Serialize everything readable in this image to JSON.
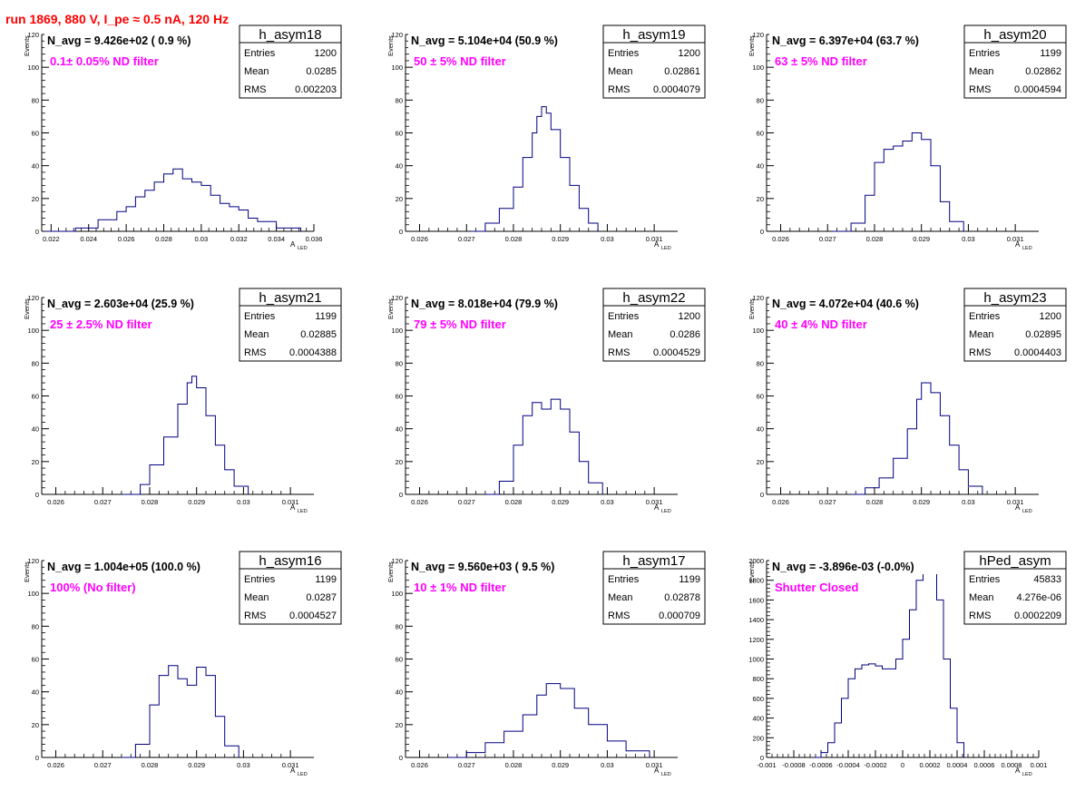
{
  "header": {
    "run_label": "run 1869,   880 V, I_pe ≈ 0.5 nA, 120 Hz"
  },
  "colors": {
    "header": "#ff0000",
    "filter_label": "#ff00ff",
    "histogram": "#000080",
    "axis": "#000000",
    "background": "#ffffff"
  },
  "axis_titles": {
    "y": "Events",
    "x_main": "A",
    "x_sub": "LED"
  },
  "stats_labels": {
    "entries": "Entries",
    "mean": "Mean",
    "rms": "RMS"
  },
  "chart_data": [
    {
      "type": "bar",
      "name": "h_asym18",
      "navg_text": "N_avg = 9.426e+02 ( 0.9 %)",
      "filter_text": "0.1± 0.05% ND filter",
      "stats": {
        "entries": "1200",
        "mean": "0.0285",
        "rms": "0.002203"
      },
      "xlim": [
        0.0215,
        0.036
      ],
      "ylim": [
        0,
        120
      ],
      "xticks": [
        0.022,
        0.024,
        0.026,
        0.028,
        0.03,
        0.032,
        0.034,
        0.036
      ],
      "xtick_labels": [
        "0.022",
        "0.024",
        "0.026",
        "0.028",
        "0.03",
        "0.032",
        "0.034",
        "0.036"
      ],
      "yticks": [
        0,
        20,
        40,
        60,
        80,
        100,
        120
      ],
      "ytick_labels": [
        "0",
        "20",
        "40",
        "60",
        "80",
        "100",
        "120"
      ],
      "x": [
        0.0217,
        0.0233,
        0.0245,
        0.0255,
        0.026,
        0.0265,
        0.027,
        0.0275,
        0.028,
        0.0285,
        0.029,
        0.0295,
        0.03,
        0.0305,
        0.031,
        0.0315,
        0.032,
        0.0325,
        0.033,
        0.034,
        0.0353
      ],
      "y": [
        0,
        2,
        7,
        12,
        15,
        21,
        25,
        30,
        35,
        38,
        32,
        30,
        28,
        22,
        17,
        15,
        13,
        8,
        6,
        2,
        0
      ]
    },
    {
      "type": "bar",
      "name": "h_asym19",
      "navg_text": "N_avg = 5.104e+04 (50.9 %)",
      "filter_text": "50 ± 5% ND filter",
      "stats": {
        "entries": "1200",
        "mean": "0.02861",
        "rms": "0.0004079"
      },
      "xlim": [
        0.0257,
        0.0315
      ],
      "ylim": [
        0,
        120
      ],
      "xticks": [
        0.026,
        0.027,
        0.028,
        0.029,
        0.03,
        0.031
      ],
      "xtick_labels": [
        "0.026",
        "0.027",
        "0.028",
        "0.029",
        "0.03",
        "0.031"
      ],
      "yticks": [
        0,
        20,
        40,
        60,
        80,
        100,
        120
      ],
      "ytick_labels": [
        "0",
        "20",
        "40",
        "60",
        "80",
        "100",
        "120"
      ],
      "x": [
        0.0271,
        0.0274,
        0.0277,
        0.028,
        0.0282,
        0.0284,
        0.0285,
        0.0286,
        0.0287,
        0.0288,
        0.029,
        0.0292,
        0.0294,
        0.0296,
        0.0298
      ],
      "y": [
        0,
        5,
        14,
        27,
        45,
        60,
        70,
        76,
        72,
        62,
        45,
        28,
        14,
        5,
        0
      ]
    },
    {
      "type": "bar",
      "name": "h_asym20",
      "navg_text": "N_avg = 6.397e+04 (63.7 %)",
      "filter_text": "63 ± 5% ND filter",
      "stats": {
        "entries": "1199",
        "mean": "0.02862",
        "rms": "0.0004594"
      },
      "xlim": [
        0.0257,
        0.0315
      ],
      "ylim": [
        0,
        120
      ],
      "xticks": [
        0.026,
        0.027,
        0.028,
        0.029,
        0.03,
        0.031
      ],
      "xtick_labels": [
        "0.026",
        "0.027",
        "0.028",
        "0.029",
        "0.03",
        "0.031"
      ],
      "yticks": [
        0,
        20,
        40,
        60,
        80,
        100,
        120
      ],
      "ytick_labels": [
        "0",
        "20",
        "40",
        "60",
        "80",
        "100",
        "120"
      ],
      "x": [
        0.0271,
        0.0275,
        0.0278,
        0.028,
        0.0282,
        0.0284,
        0.0286,
        0.0288,
        0.029,
        0.0292,
        0.0294,
        0.0296,
        0.0299
      ],
      "y": [
        0,
        5,
        22,
        42,
        50,
        52,
        55,
        60,
        56,
        40,
        18,
        6,
        0
      ]
    },
    {
      "type": "bar",
      "name": "h_asym21",
      "navg_text": "N_avg = 2.603e+04 (25.9 %)",
      "filter_text": "25 ± 2.5% ND filter",
      "stats": {
        "entries": "1199",
        "mean": "0.02885",
        "rms": "0.0004388"
      },
      "xlim": [
        0.0257,
        0.0315
      ],
      "ylim": [
        0,
        120
      ],
      "xticks": [
        0.026,
        0.027,
        0.028,
        0.029,
        0.03,
        0.031
      ],
      "xtick_labels": [
        "0.026",
        "0.027",
        "0.028",
        "0.029",
        "0.03",
        "0.031"
      ],
      "yticks": [
        0,
        20,
        40,
        60,
        80,
        100,
        120
      ],
      "ytick_labels": [
        "0",
        "20",
        "40",
        "60",
        "80",
        "100",
        "120"
      ],
      "x": [
        0.0274,
        0.0278,
        0.028,
        0.0283,
        0.0286,
        0.0288,
        0.0289,
        0.029,
        0.0292,
        0.0294,
        0.0296,
        0.0298,
        0.0301
      ],
      "y": [
        0,
        6,
        18,
        35,
        55,
        68,
        72,
        65,
        48,
        30,
        15,
        5,
        0
      ]
    },
    {
      "type": "bar",
      "name": "h_asym22",
      "navg_text": "N_avg = 8.018e+04 (79.9 %)",
      "filter_text": "79 ± 5% ND filter",
      "stats": {
        "entries": "1200",
        "mean": "0.0286",
        "rms": "0.0004529"
      },
      "xlim": [
        0.0257,
        0.0315
      ],
      "ylim": [
        0,
        120
      ],
      "xticks": [
        0.026,
        0.027,
        0.028,
        0.029,
        0.03,
        0.031
      ],
      "xtick_labels": [
        "0.026",
        "0.027",
        "0.028",
        "0.029",
        "0.03",
        "0.031"
      ],
      "yticks": [
        0,
        20,
        40,
        60,
        80,
        100,
        120
      ],
      "ytick_labels": [
        "0",
        "20",
        "40",
        "60",
        "80",
        "100",
        "120"
      ],
      "x": [
        0.0274,
        0.0277,
        0.028,
        0.0282,
        0.0284,
        0.0286,
        0.0288,
        0.029,
        0.0292,
        0.0294,
        0.0296,
        0.0299
      ],
      "y": [
        0,
        8,
        30,
        48,
        56,
        52,
        58,
        52,
        38,
        20,
        7,
        0
      ]
    },
    {
      "type": "bar",
      "name": "h_asym23",
      "navg_text": "N_avg = 4.072e+04 (40.6 %)",
      "filter_text": "40 ± 4% ND filter",
      "stats": {
        "entries": "1200",
        "mean": "0.02895",
        "rms": "0.0004403"
      },
      "xlim": [
        0.0257,
        0.0315
      ],
      "ylim": [
        0,
        120
      ],
      "xticks": [
        0.026,
        0.027,
        0.028,
        0.029,
        0.03,
        0.031
      ],
      "xtick_labels": [
        "0.026",
        "0.027",
        "0.028",
        "0.029",
        "0.03",
        "0.031"
      ],
      "yticks": [
        0,
        20,
        40,
        60,
        80,
        100,
        120
      ],
      "ytick_labels": [
        "0",
        "20",
        "40",
        "60",
        "80",
        "100",
        "120"
      ],
      "x": [
        0.0275,
        0.0278,
        0.0281,
        0.0284,
        0.0287,
        0.0289,
        0.029,
        0.0292,
        0.0294,
        0.0296,
        0.0298,
        0.03,
        0.0303
      ],
      "y": [
        0,
        4,
        10,
        22,
        40,
        58,
        68,
        62,
        48,
        30,
        15,
        5,
        0
      ]
    },
    {
      "type": "bar",
      "name": "h_asym16",
      "navg_text": "N_avg = 1.004e+05 (100.0 %)",
      "filter_text": "100% (No filter)",
      "stats": {
        "entries": "1199",
        "mean": "0.0287",
        "rms": "0.0004527"
      },
      "xlim": [
        0.0257,
        0.0315
      ],
      "ylim": [
        0,
        120
      ],
      "xticks": [
        0.026,
        0.027,
        0.028,
        0.029,
        0.03,
        0.031
      ],
      "xtick_labels": [
        "0.026",
        "0.027",
        "0.028",
        "0.029",
        "0.03",
        "0.031"
      ],
      "yticks": [
        0,
        20,
        40,
        60,
        80,
        100,
        120
      ],
      "ytick_labels": [
        "0",
        "20",
        "40",
        "60",
        "80",
        "100",
        "120"
      ],
      "x": [
        0.0274,
        0.0277,
        0.028,
        0.0282,
        0.0284,
        0.0286,
        0.0288,
        0.029,
        0.0292,
        0.0294,
        0.0296,
        0.0299
      ],
      "y": [
        0,
        8,
        32,
        50,
        56,
        48,
        44,
        55,
        50,
        25,
        7,
        0
      ]
    },
    {
      "type": "bar",
      "name": "h_asym17",
      "navg_text": "N_avg = 9.560e+03 ( 9.5 %)",
      "filter_text": "10 ± 1% ND filter",
      "stats": {
        "entries": "1199",
        "mean": "0.02878",
        "rms": "0.000709"
      },
      "xlim": [
        0.0257,
        0.0315
      ],
      "ylim": [
        0,
        120
      ],
      "xticks": [
        0.026,
        0.027,
        0.028,
        0.029,
        0.03,
        0.031
      ],
      "xtick_labels": [
        "0.026",
        "0.027",
        "0.028",
        "0.029",
        "0.03",
        "0.031"
      ],
      "yticks": [
        0,
        20,
        40,
        60,
        80,
        100,
        120
      ],
      "ytick_labels": [
        "0",
        "20",
        "40",
        "60",
        "80",
        "100",
        "120"
      ],
      "x": [
        0.0266,
        0.027,
        0.0274,
        0.0278,
        0.0282,
        0.0285,
        0.0287,
        0.029,
        0.0293,
        0.0296,
        0.03,
        0.0304,
        0.0309
      ],
      "y": [
        0,
        3,
        9,
        16,
        26,
        38,
        45,
        42,
        30,
        20,
        10,
        4,
        0
      ]
    },
    {
      "type": "bar",
      "name": "hPed_asym",
      "navg_text": "N_avg = -3.896e-03 (-0.0%)",
      "filter_text": "Shutter Closed",
      "stats": {
        "entries": "45833",
        "mean": "4.276e-06",
        "rms": "0.0002209"
      },
      "xlim": [
        -0.001,
        0.001
      ],
      "ylim": [
        0,
        2000
      ],
      "xticks": [
        -0.001,
        -0.0008,
        -0.0006,
        -0.0004,
        -0.0002,
        0,
        0.0002,
        0.0004,
        0.0006,
        0.0008,
        0.001
      ],
      "xtick_labels": [
        "-0.001",
        "-0.0008",
        "-0.0006",
        "-0.0004",
        "-0.0002",
        "0",
        "0.0002",
        "0.0004",
        "0.0006",
        "0.0008",
        "0.001"
      ],
      "yticks": [
        0,
        200,
        400,
        600,
        800,
        1000,
        1200,
        1400,
        1600,
        1800,
        2000
      ],
      "ytick_labels": [
        "0",
        "200",
        "400",
        "600",
        "800",
        "1000",
        "1200",
        "1400",
        "1600",
        "1800",
        "2000"
      ],
      "x": [
        -0.00065,
        -0.0006,
        -0.00055,
        -0.0005,
        -0.00045,
        -0.0004,
        -0.00035,
        -0.0003,
        -0.00025,
        -0.0002,
        -0.00015,
        -0.0001,
        -5e-05,
        0,
        5e-05,
        0.0001,
        0.00015,
        0.00018,
        0.0002,
        0.00025,
        0.0003,
        0.00035,
        0.0004,
        0.00045
      ],
      "y": [
        0,
        50,
        150,
        350,
        600,
        800,
        900,
        940,
        950,
        930,
        900,
        900,
        1000,
        1200,
        1500,
        1800,
        1970,
        2000,
        1900,
        1600,
        1000,
        500,
        150,
        0
      ]
    }
  ]
}
